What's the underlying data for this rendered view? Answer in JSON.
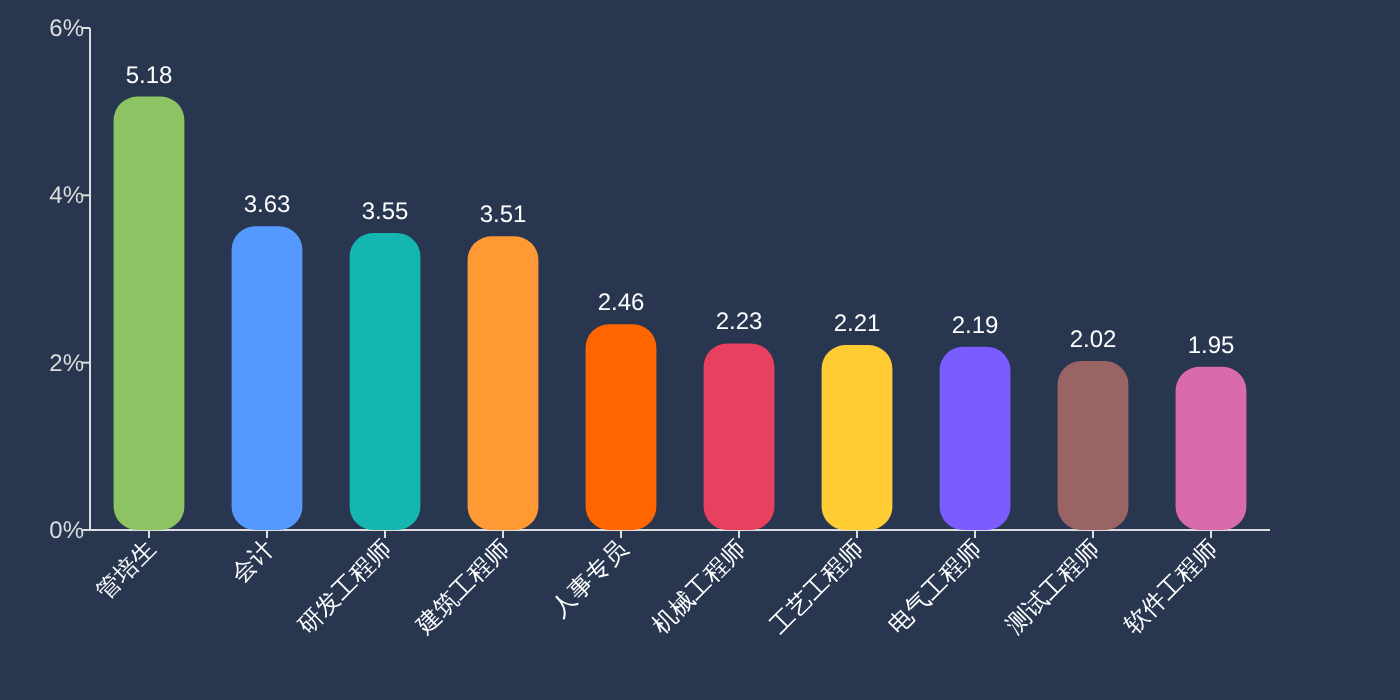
{
  "chart_data": {
    "type": "bar",
    "categories": [
      "管培生",
      "会计",
      "研发工程师",
      "建筑工程师",
      "人事专员",
      "机械工程师",
      "工艺工程师",
      "电气工程师",
      "测试工程师",
      "软件工程师"
    ],
    "values": [
      5.18,
      3.63,
      3.55,
      3.51,
      2.46,
      2.23,
      2.21,
      2.19,
      2.02,
      1.95
    ],
    "colors": [
      "#8dc363",
      "#5599ff",
      "#15b5b0",
      "#ff9933",
      "#ff6600",
      "#e8415f",
      "#ffcc33",
      "#7a5cff",
      "#9b6464",
      "#d96aad"
    ],
    "ylim": [
      0,
      6
    ],
    "yticks": [
      {
        "value": 0,
        "label": "0%"
      },
      {
        "value": 2,
        "label": "2%"
      },
      {
        "value": 4,
        "label": "4%"
      },
      {
        "value": 6,
        "label": "6%"
      }
    ],
    "data_labels": true,
    "grid": false
  }
}
